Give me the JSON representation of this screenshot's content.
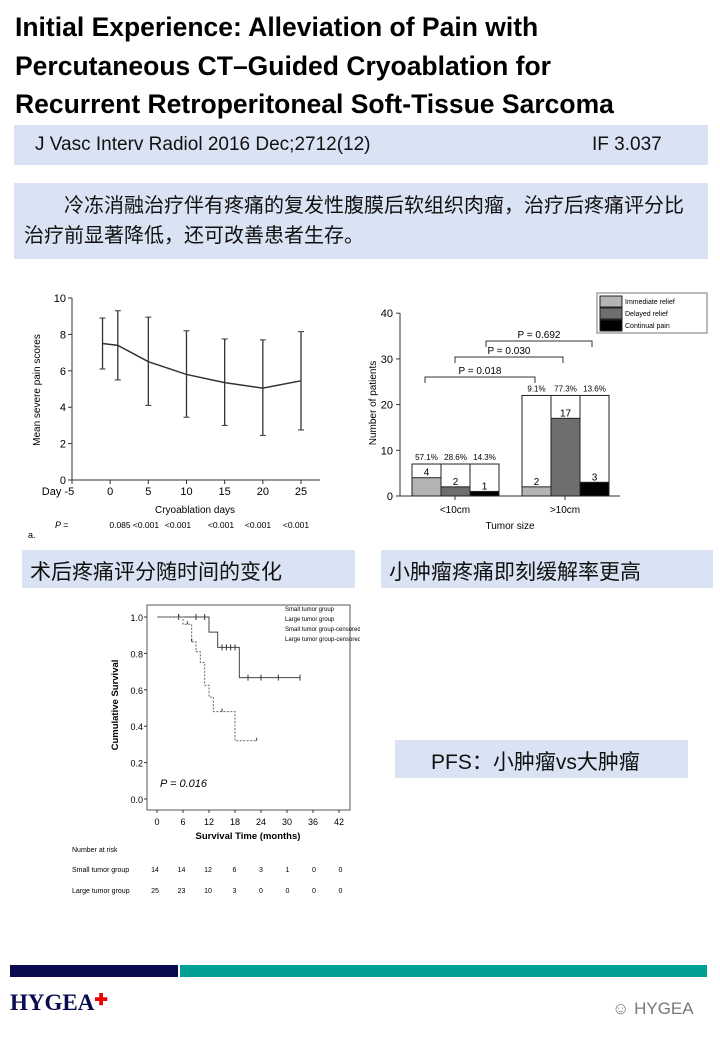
{
  "title_lines": [
    "Initial Experience: Alleviation of Pain with",
    "Percutaneous CT–Guided Cryoablation for",
    "Recurrent Retroperitoneal Soft-Tissue Sarcoma"
  ],
  "journal": {
    "citation": "J Vasc Interv Radiol 2016 Dec;2712(12)",
    "impact_factor": "IF 3.037"
  },
  "summary": "冷冻消融治疗伴有疼痛的复发性腹膜后软组织肉瘤，治疗后疼痛评分比治疗前显著降低，还可改善患者生存。",
  "captions": {
    "pain_time": "术后疼痛评分随时间的变化",
    "small_tumor": "小肿瘤疼痛即刻缓解率更高",
    "pfs": "PFS：小肿瘤vs大肿瘤"
  },
  "footer": {
    "logo": "HYGEA",
    "watermark": "HYGEA",
    "colors": {
      "navy": "#0a0a50",
      "teal": "#00a096"
    }
  },
  "chart_data": [
    {
      "type": "line",
      "xlabel": "Cryoablation days",
      "ylabel": "Mean severe pain scores",
      "ylim": [
        0,
        10
      ],
      "xlim": [
        -5,
        27
      ],
      "xticks": [
        "Day -5",
        "0",
        "5",
        "10",
        "15",
        "20",
        "25"
      ],
      "yticks": [
        "0",
        "2",
        "4",
        "6",
        "8",
        "10"
      ],
      "x": [
        -1,
        1,
        5,
        10,
        15,
        20,
        25
      ],
      "y": [
        7.5,
        7.4,
        6.5,
        5.8,
        5.35,
        5.05,
        5.45
      ],
      "err_low": [
        6.1,
        5.5,
        4.1,
        3.45,
        3.0,
        2.45,
        2.75
      ],
      "err_high": [
        8.9,
        9.3,
        8.95,
        8.2,
        7.75,
        7.7,
        8.15
      ],
      "p_label": "P =",
      "p_values": [
        "0.085",
        "<0.001",
        "<0.001",
        "<0.001",
        "<0.001",
        "<0.001"
      ],
      "panel_label": "a."
    },
    {
      "type": "bar",
      "xlabel": "Tumor size",
      "ylabel": "Number of patients",
      "ylim": [
        0,
        40
      ],
      "yticks": [
        "0",
        "10",
        "20",
        "30",
        "40"
      ],
      "categories": [
        "<10cm",
        ">10cm"
      ],
      "group_totals": [
        7,
        22
      ],
      "series": [
        {
          "name": "Immediate relief",
          "color": "#b4b4b4",
          "values": [
            4,
            2
          ],
          "percent": [
            "57.1%",
            "9.1%"
          ]
        },
        {
          "name": "Delayed relief",
          "color": "#6e6e6e",
          "values": [
            2,
            17
          ],
          "percent": [
            "28.6%",
            "77.3%"
          ]
        },
        {
          "name": "Continual pain",
          "color": "#000000",
          "values": [
            1,
            3
          ],
          "percent": [
            "14.3%",
            "13.6%"
          ]
        }
      ],
      "comparisons": [
        "P = 0.018",
        "P = 0.030",
        "P = 0.692"
      ]
    },
    {
      "type": "line",
      "xlabel": "Survival Time (months)",
      "ylabel": "Cumulative Survival",
      "ylim": [
        0,
        1
      ],
      "xlim": [
        0,
        42
      ],
      "xticks": [
        "0",
        "6",
        "12",
        "18",
        "24",
        "30",
        "36",
        "42"
      ],
      "yticks": [
        "0.0",
        "0.2",
        "0.4",
        "0.6",
        "0.8",
        "1.0"
      ],
      "series": [
        {
          "name": "Small tumor group",
          "x": [
            0,
            12,
            14,
            19,
            33
          ],
          "y": [
            1,
            0.917,
            0.833,
            0.667,
            0.667
          ],
          "censored": [
            5,
            9,
            11,
            15,
            16,
            17,
            18,
            21,
            24,
            28,
            33
          ]
        },
        {
          "name": "Large tumor group",
          "x": [
            0,
            6,
            8,
            9,
            10,
            11,
            12,
            13,
            18,
            23
          ],
          "y": [
            1,
            0.96,
            0.864,
            0.81,
            0.75,
            0.625,
            0.56,
            0.48,
            0.32,
            0.32
          ],
          "censored": [
            5,
            7,
            8,
            15,
            23
          ]
        }
      ],
      "legend": [
        "Small tumor group",
        "Large tumor group",
        "Small tumor group-censored",
        "Large tumor group-censored"
      ],
      "annotation": "P = 0.016",
      "risk_table": {
        "title": "Number at risk",
        "rows": [
          {
            "label": "Small tumor group",
            "values": [
              "14",
              "14",
              "12",
              "6",
              "3",
              "1",
              "0",
              "0"
            ]
          },
          {
            "label": "Large tumor group",
            "values": [
              "25",
              "23",
              "10",
              "3",
              "0",
              "0",
              "0",
              "0"
            ]
          }
        ]
      }
    }
  ]
}
